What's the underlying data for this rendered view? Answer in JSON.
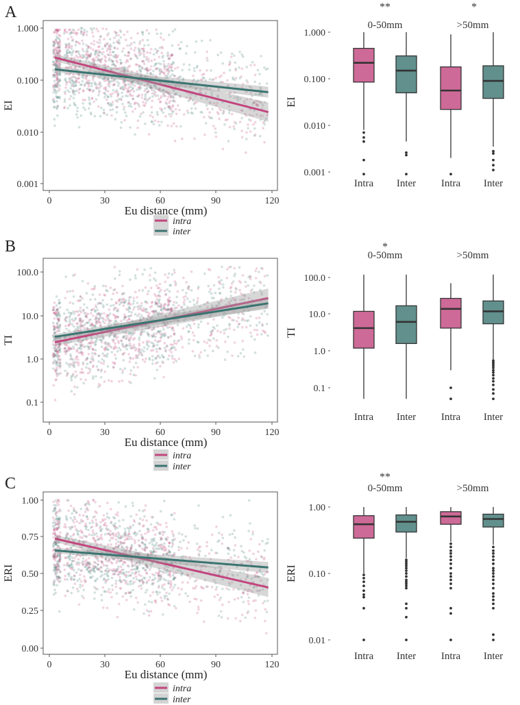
{
  "colors": {
    "intra": "#c2457d",
    "inter": "#3a7471",
    "intra_fill": "#c9608c",
    "inter_fill": "#5f8f8a"
  },
  "panels": [
    {
      "label": "A",
      "ylabel": "EI",
      "xlabel": "Eu distance (mm)",
      "legend": [
        "intra",
        "inter"
      ]
    },
    {
      "label": "B",
      "ylabel": "TI",
      "xlabel": "Eu distance (mm)",
      "legend": [
        "intra",
        "inter"
      ]
    },
    {
      "label": "C",
      "ylabel": "ERI",
      "xlabel": "Eu distance (mm)",
      "legend": [
        "intra",
        "inter"
      ]
    }
  ],
  "chart_data": [
    {
      "id": "A-scatter",
      "type": "scatter",
      "ylabel": "EI",
      "xlabel": "Eu distance (mm)",
      "yscale": "log",
      "yticks": [
        "0.001",
        "0.010",
        "0.100",
        "1.000"
      ],
      "xticks": [
        "0",
        "30",
        "60",
        "90",
        "120"
      ],
      "xlim": [
        -3,
        122
      ],
      "ylim": [
        0.001,
        1.3
      ],
      "series": [
        {
          "name": "intra",
          "fit": {
            "x": [
              3,
              118
            ],
            "y": [
              0.27,
              0.024
            ]
          }
        },
        {
          "name": "inter",
          "fit": {
            "x": [
              3,
              118
            ],
            "y": [
              0.16,
              0.058
            ]
          }
        }
      ]
    },
    {
      "id": "A-box",
      "type": "box",
      "ylabel": "EI",
      "yscale": "log",
      "yticks": [
        "0.001",
        "0.010",
        "0.100",
        "1.000"
      ],
      "xticks": [
        "Intra",
        "Inter",
        "Intra",
        "Inter"
      ],
      "groups": [
        {
          "label": "0-50mm",
          "sig": "**"
        },
        {
          "label": ">50mm",
          "sig": "*"
        }
      ],
      "boxes": [
        {
          "group": "0-50mm",
          "series": "intra",
          "whislo": 0.008,
          "q1": 0.085,
          "med": 0.22,
          "q3": 0.45,
          "whishi": 1.0,
          "fliers": [
            0.007,
            0.0055,
            0.0045,
            0.0018,
            0.0009
          ]
        },
        {
          "group": "0-50mm",
          "series": "inter",
          "whislo": 0.0045,
          "q1": 0.05,
          "med": 0.15,
          "q3": 0.31,
          "whishi": 1.0,
          "fliers": [
            0.0026,
            0.0023,
            0.0009
          ]
        },
        {
          "group": ">50mm",
          "series": "intra",
          "whislo": 0.002,
          "q1": 0.022,
          "med": 0.056,
          "q3": 0.18,
          "whishi": 0.9,
          "fliers": [
            0.0009
          ]
        },
        {
          "group": ">50mm",
          "series": "inter",
          "whislo": 0.0035,
          "q1": 0.038,
          "med": 0.09,
          "q3": 0.19,
          "whishi": 1.0,
          "fliers": [
            0.0028,
            0.0025,
            0.0018,
            0.0014,
            0.0011
          ]
        }
      ]
    },
    {
      "id": "B-scatter",
      "type": "scatter",
      "ylabel": "TI",
      "xlabel": "Eu distance (mm)",
      "yscale": "log",
      "yticks": [
        "0.1",
        "1.0",
        "10.0",
        "100.0"
      ],
      "xticks": [
        "0",
        "30",
        "60",
        "90",
        "120"
      ],
      "xlim": [
        -3,
        122
      ],
      "ylim": [
        0.035,
        160
      ],
      "series": [
        {
          "name": "intra",
          "fit": {
            "x": [
              3,
              118
            ],
            "y": [
              2.4,
              25
            ]
          }
        },
        {
          "name": "inter",
          "fit": {
            "x": [
              3,
              118
            ],
            "y": [
              3.2,
              19
            ]
          }
        }
      ]
    },
    {
      "id": "B-box",
      "type": "box",
      "ylabel": "TI",
      "yscale": "log",
      "yticks": [
        "0.1",
        "1.0",
        "10.0",
        "100.0"
      ],
      "xticks": [
        "Intra",
        "Inter",
        "Intra",
        "Inter"
      ],
      "groups": [
        {
          "label": "0-50mm",
          "sig": "*"
        },
        {
          "label": ">50mm",
          "sig": ""
        }
      ],
      "boxes": [
        {
          "group": "0-50mm",
          "series": "intra",
          "whislo": 0.05,
          "q1": 1.2,
          "med": 4.2,
          "q3": 12,
          "whishi": 120,
          "fliers": []
        },
        {
          "group": "0-50mm",
          "series": "inter",
          "whislo": 0.05,
          "q1": 1.6,
          "med": 6.2,
          "q3": 17,
          "whishi": 120,
          "fliers": []
        },
        {
          "group": ">50mm",
          "series": "intra",
          "whislo": 0.3,
          "q1": 4.2,
          "med": 14,
          "q3": 27,
          "whishi": 70,
          "fliers": [
            0.1,
            0.05
          ]
        },
        {
          "group": ">50mm",
          "series": "inter",
          "whislo": 0.6,
          "q1": 5.5,
          "med": 12,
          "q3": 23,
          "whishi": 120,
          "fliers": [
            0.55,
            0.5,
            0.45,
            0.4,
            0.35,
            0.3,
            0.26,
            0.22,
            0.18,
            0.15,
            0.12,
            0.09,
            0.07,
            0.05
          ]
        }
      ]
    },
    {
      "id": "C-scatter",
      "type": "scatter",
      "ylabel": "ERI",
      "xlabel": "Eu distance (mm)",
      "yscale": "linear",
      "yticks": [
        "0.00",
        "0.25",
        "0.50",
        "0.75",
        "1.00"
      ],
      "xticks": [
        "0",
        "30",
        "60",
        "90",
        "120"
      ],
      "xlim": [
        -3,
        122
      ],
      "ylim": [
        -0.05,
        1.05
      ],
      "series": [
        {
          "name": "intra",
          "fit": {
            "x": [
              3,
              118
            ],
            "y": [
              0.74,
              0.41
            ]
          }
        },
        {
          "name": "inter",
          "fit": {
            "x": [
              3,
              118
            ],
            "y": [
              0.66,
              0.545
            ]
          }
        }
      ]
    },
    {
      "id": "C-box",
      "type": "box",
      "ylabel": "ERI",
      "yscale": "log",
      "yticks": [
        "0.01",
        "0.10",
        "1.00"
      ],
      "xticks": [
        "Intra",
        "Inter",
        "Intra",
        "Inter"
      ],
      "groups": [
        {
          "label": "0-50mm",
          "sig": "**"
        },
        {
          "label": ">50mm",
          "sig": ""
        }
      ],
      "boxes": [
        {
          "group": "0-50mm",
          "series": "intra",
          "whislo": 0.1,
          "q1": 0.34,
          "med": 0.55,
          "q3": 0.74,
          "whishi": 1.0,
          "fliers": [
            0.095,
            0.085,
            0.075,
            0.065,
            0.055,
            0.048,
            0.044,
            0.03,
            0.01
          ]
        },
        {
          "group": "0-50mm",
          "series": "inter",
          "whislo": 0.17,
          "q1": 0.42,
          "med": 0.6,
          "q3": 0.76,
          "whishi": 1.0,
          "fliers": [
            0.16,
            0.15,
            0.14,
            0.13,
            0.12,
            0.11,
            0.1,
            0.09,
            0.08,
            0.075,
            0.07,
            0.065,
            0.06,
            0.035,
            0.03,
            0.022,
            0.01
          ]
        },
        {
          "group": ">50mm",
          "series": "intra",
          "whislo": 0.3,
          "q1": 0.55,
          "med": 0.72,
          "q3": 0.85,
          "whishi": 1.0,
          "fliers": [
            0.28,
            0.25,
            0.22,
            0.2,
            0.18,
            0.16,
            0.14,
            0.12,
            0.1,
            0.09,
            0.08,
            0.07,
            0.06,
            0.03,
            0.025,
            0.01
          ]
        },
        {
          "group": ">50mm",
          "series": "inter",
          "whislo": 0.27,
          "q1": 0.5,
          "med": 0.66,
          "q3": 0.78,
          "whishi": 1.0,
          "fliers": [
            0.25,
            0.22,
            0.2,
            0.18,
            0.16,
            0.14,
            0.12,
            0.11,
            0.1,
            0.09,
            0.08,
            0.07,
            0.06,
            0.05,
            0.045,
            0.04,
            0.035,
            0.03,
            0.012,
            0.01
          ]
        }
      ]
    }
  ]
}
